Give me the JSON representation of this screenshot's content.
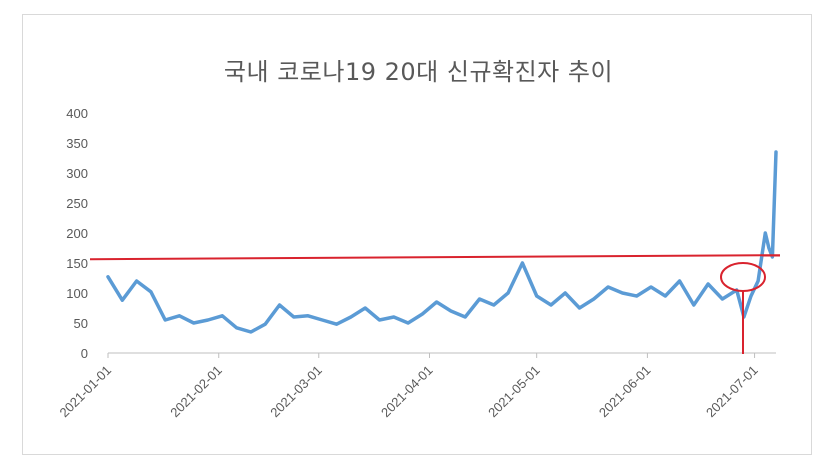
{
  "chart_data": {
    "type": "line",
    "title": "국내 코로나19 20대 신규확진자 추이",
    "xlabel": "",
    "ylabel": "",
    "ylim": [
      0,
      400
    ],
    "y_ticks": [
      "0",
      "50",
      "100",
      "150",
      "200",
      "250",
      "300",
      "350",
      "400"
    ],
    "x_ticks": [
      "2021-01-01",
      "2021-02-01",
      "2021-03-01",
      "2021-04-01",
      "2021-05-01",
      "2021-06-01",
      "2021-07-01"
    ],
    "x_range": [
      "2021-01-01",
      "2021-07-07"
    ],
    "grid": false,
    "series": [
      {
        "color": "#5b9bd5",
        "x": [
          "2021-01-01",
          "2021-01-05",
          "2021-01-09",
          "2021-01-13",
          "2021-01-17",
          "2021-01-21",
          "2021-01-25",
          "2021-01-29",
          "2021-02-02",
          "2021-02-06",
          "2021-02-10",
          "2021-02-14",
          "2021-02-18",
          "2021-02-22",
          "2021-02-26",
          "2021-03-02",
          "2021-03-06",
          "2021-03-10",
          "2021-03-14",
          "2021-03-18",
          "2021-03-22",
          "2021-03-26",
          "2021-03-30",
          "2021-04-03",
          "2021-04-07",
          "2021-04-11",
          "2021-04-15",
          "2021-04-19",
          "2021-04-23",
          "2021-04-27",
          "2021-05-01",
          "2021-05-05",
          "2021-05-09",
          "2021-05-13",
          "2021-05-17",
          "2021-05-21",
          "2021-05-25",
          "2021-05-29",
          "2021-06-02",
          "2021-06-06",
          "2021-06-10",
          "2021-06-14",
          "2021-06-18",
          "2021-06-22",
          "2021-06-26",
          "2021-06-28",
          "2021-06-30",
          "2021-07-02",
          "2021-07-04",
          "2021-07-05",
          "2021-07-06",
          "2021-07-07"
        ],
        "values": [
          127,
          88,
          120,
          102,
          55,
          62,
          50,
          55,
          62,
          42,
          35,
          48,
          80,
          60,
          62,
          55,
          48,
          60,
          75,
          55,
          60,
          50,
          65,
          85,
          70,
          60,
          90,
          80,
          100,
          150,
          95,
          80,
          100,
          75,
          90,
          110,
          100,
          95,
          110,
          95,
          120,
          80,
          115,
          90,
          105,
          60,
          95,
          120,
          200,
          175,
          160,
          335
        ]
      }
    ]
  },
  "annotations": {
    "line_color": "#d9232e",
    "threshold_value": 158
  }
}
